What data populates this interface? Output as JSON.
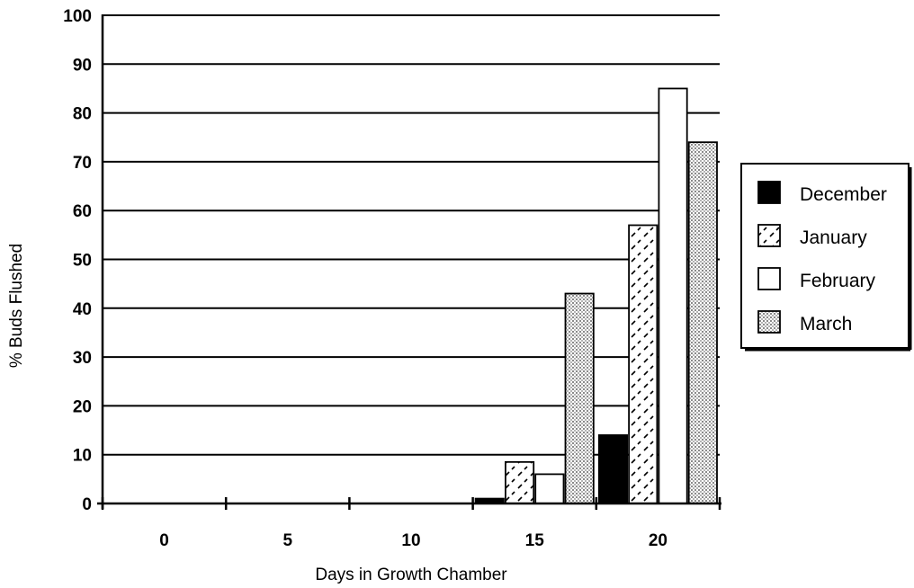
{
  "chart_data": {
    "type": "bar",
    "title": "",
    "xlabel": "Days in Growth Chamber",
    "ylabel": "% Buds Flushed",
    "categories": [
      "0",
      "5",
      "10",
      "15",
      "20"
    ],
    "series": [
      {
        "name": "December",
        "values": [
          0,
          0,
          0,
          1,
          14
        ],
        "pattern": "solid"
      },
      {
        "name": "January",
        "values": [
          0,
          0,
          0,
          8.5,
          57
        ],
        "pattern": "dashed-diagonal"
      },
      {
        "name": "February",
        "values": [
          0,
          0,
          0,
          6,
          85
        ],
        "pattern": "empty"
      },
      {
        "name": "March",
        "values": [
          0,
          0,
          0,
          43,
          74
        ],
        "pattern": "dotted"
      }
    ],
    "ylim": [
      0,
      100
    ],
    "yticks": [
      "0",
      "10",
      "20",
      "30",
      "40",
      "50",
      "60",
      "70",
      "80",
      "90",
      "100"
    ],
    "grid": true,
    "legend_position": "right"
  },
  "colors": {
    "ink": "#000000",
    "background": "#ffffff",
    "dots": "#9a9a9a"
  }
}
